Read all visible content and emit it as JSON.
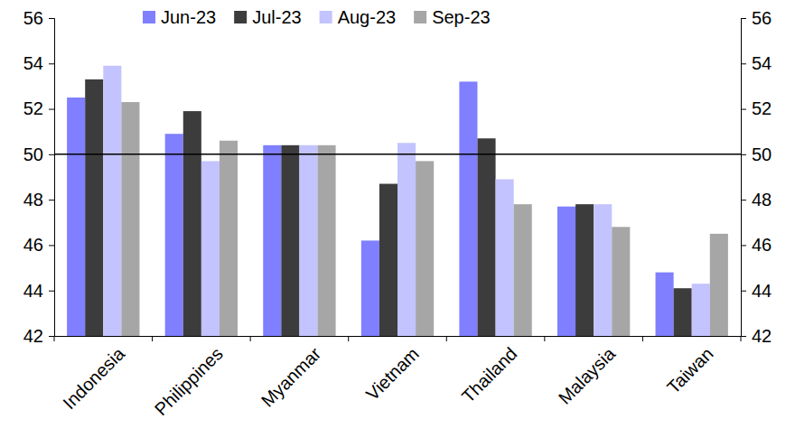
{
  "chart_data": {
    "type": "bar",
    "categories": [
      "Indonesia",
      "Philippines",
      "Myanmar",
      "Vietnam",
      "Thailand",
      "Malaysia",
      "Taiwan"
    ],
    "series": [
      {
        "name": "Jun-23",
        "color": "#7f7fff",
        "values": [
          52.5,
          50.9,
          50.4,
          46.2,
          53.2,
          47.7,
          44.8
        ]
      },
      {
        "name": "Jul-23",
        "color": "#3c3c3c",
        "values": [
          53.3,
          51.9,
          50.4,
          48.7,
          50.7,
          47.8,
          44.1
        ]
      },
      {
        "name": "Aug-23",
        "color": "#c3c3ff",
        "values": [
          53.9,
          49.7,
          50.4,
          50.5,
          48.9,
          47.8,
          44.3
        ]
      },
      {
        "name": "Sep-23",
        "color": "#a6a6a6",
        "values": [
          52.3,
          50.6,
          50.4,
          49.7,
          47.8,
          46.8,
          46.5
        ]
      }
    ],
    "ylim": [
      42,
      56
    ],
    "yticks": [
      42,
      44,
      46,
      48,
      50,
      52,
      54,
      56
    ],
    "y2lim": [
      42,
      56
    ],
    "y2ticks": [
      42,
      44,
      46,
      48,
      50,
      52,
      54,
      56
    ],
    "reference_line": 50,
    "legend": "top",
    "grid": false
  }
}
